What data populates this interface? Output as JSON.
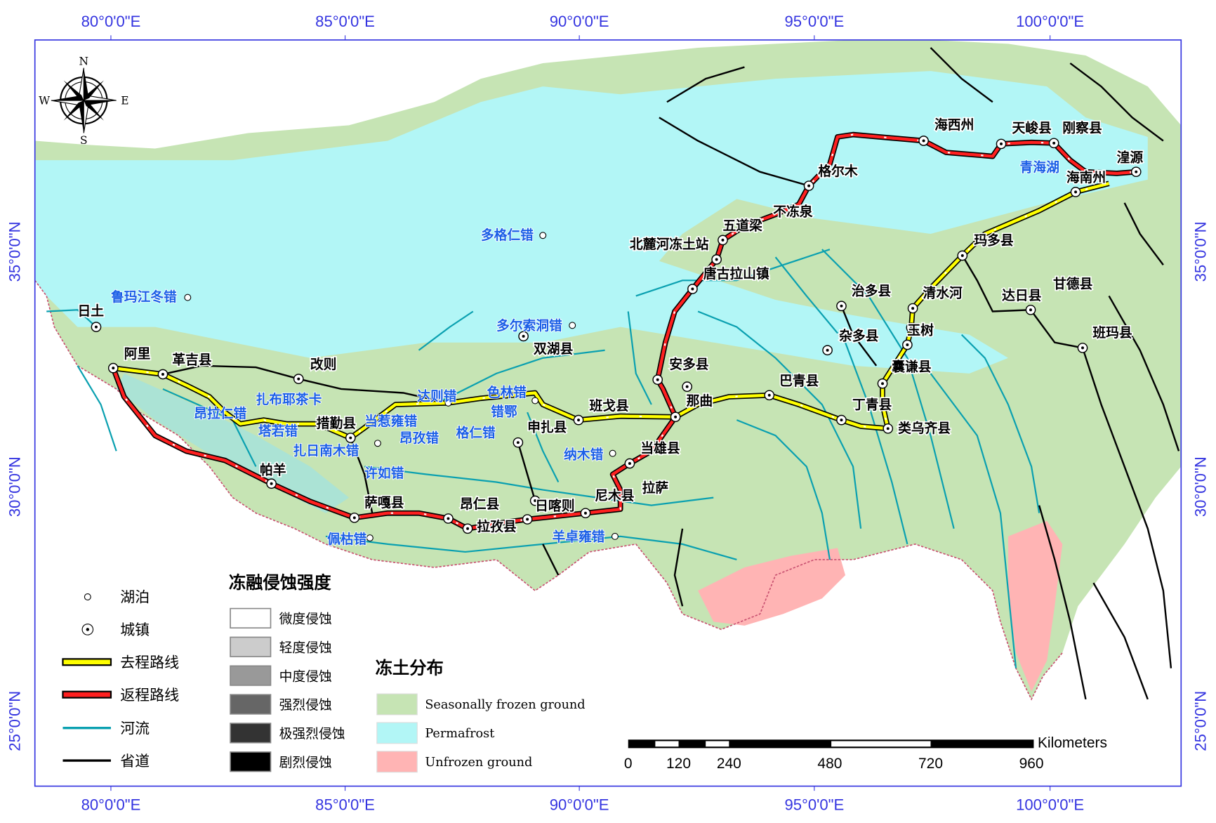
{
  "axes": {
    "longitude_ticks": [
      "80°0'0\"E",
      "85°0'0\"E",
      "90°0'0\"E",
      "95°0'0\"E",
      "100°0'0\"E"
    ],
    "latitude_ticks": [
      "35°0'0\"N",
      "30°0'0\"N",
      "25°0'0\"N"
    ]
  },
  "compass": {
    "n": "N",
    "s": "S",
    "e": "E",
    "w": "W"
  },
  "towns": [
    "日土",
    "阿里",
    "革吉县",
    "改则",
    "措勤县",
    "申扎县",
    "帕羊",
    "萨嘎县",
    "昂仁县",
    "拉孜县",
    "日喀则",
    "尼木县",
    "拉萨",
    "当雄县",
    "班戈县",
    "那曲",
    "安多县",
    "巴青县",
    "丁青县",
    "类乌齐县",
    "囊谦县",
    "杂多县",
    "玉树",
    "治多县",
    "清水河",
    "玛多县",
    "达日县",
    "甘德县",
    "班玛县",
    "海南州",
    "湟源",
    "海西州",
    "天峻县",
    "刚察县",
    "格尔木",
    "不冻泉",
    "五道梁",
    "北麓河冻土站",
    "唐古拉山镇",
    "双湖县"
  ],
  "lakes": [
    "鲁玛江冬错",
    "扎布耶茶卡",
    "昂拉仁错",
    "塔若错",
    "当惹雍错",
    "扎日南木错",
    "达则错",
    "色林错",
    "错鄂",
    "昂孜错",
    "格仁错",
    "许如错",
    "佩枯错",
    "羊卓雍错",
    "纳木错",
    "多尔索洞错",
    "多格仁错",
    "青海湖"
  ],
  "legend_symbols": {
    "items": [
      {
        "label": "湖泊",
        "icon": "lake-circle-icon"
      },
      {
        "label": "城镇",
        "icon": "town-dot-circle-icon"
      },
      {
        "label": "去程路线",
        "icon": "outbound-route-line",
        "color": "#ffff00"
      },
      {
        "label": "返程路线",
        "icon": "return-route-line",
        "color": "#ff2020"
      },
      {
        "label": "河流",
        "icon": "river-line",
        "color": "#00a0b0"
      },
      {
        "label": "省道",
        "icon": "provincial-road-line",
        "color": "#000000"
      }
    ]
  },
  "legend_erosion": {
    "title": "冻融侵蚀强度",
    "items": [
      {
        "label": "微度侵蚀",
        "color": "#ffffff"
      },
      {
        "label": "轻度侵蚀",
        "color": "#cccccc"
      },
      {
        "label": "中度侵蚀",
        "color": "#999999"
      },
      {
        "label": "强烈侵蚀",
        "color": "#666666"
      },
      {
        "label": "极强烈侵蚀",
        "color": "#333333"
      },
      {
        "label": "剧烈侵蚀",
        "color": "#000000"
      }
    ]
  },
  "legend_frozen": {
    "title": "冻土分布",
    "items": [
      {
        "label": "Seasonally frozen ground",
        "color": "#c6e4b4"
      },
      {
        "label": "Permafrost",
        "color": "#b2f6f6"
      },
      {
        "label": "Unfrozen ground",
        "color": "#ffb4b4"
      }
    ]
  },
  "scale_bar": {
    "unit": "Kilometers",
    "ticks": [
      "0",
      "120",
      "240",
      "480",
      "720",
      "960"
    ]
  }
}
